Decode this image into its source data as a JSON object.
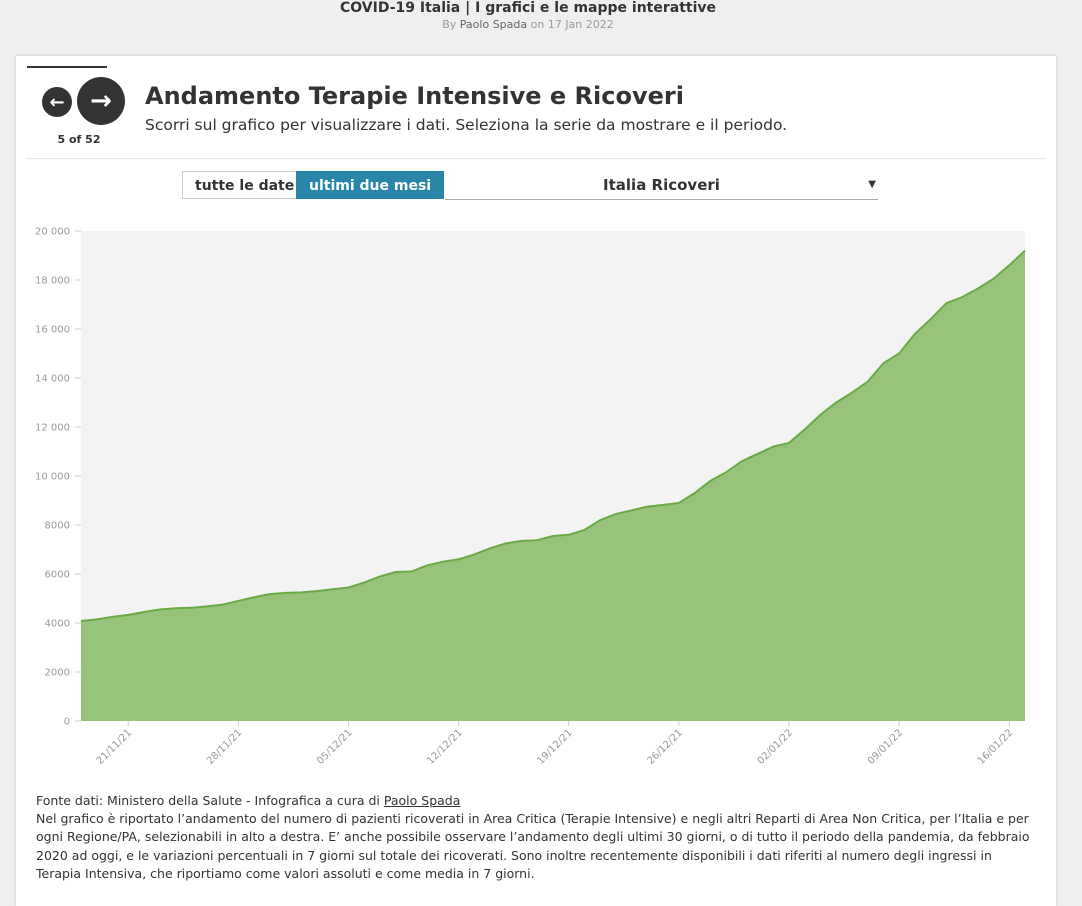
{
  "header": {
    "title": "COVID-19 Italia | I grafici e le mappe interattive",
    "by": "By",
    "author": "Paolo Spada",
    "on": "on 17 Jan 2022"
  },
  "nav": {
    "counter": "5 of 52"
  },
  "card": {
    "title": "Andamento Terapie Intensive e Ricoveri",
    "subtitle": "Scorri sul grafico per visualizzare i dati. Seleziona la serie da mostrare e il periodo."
  },
  "controls": {
    "buttons": [
      "tutte le date",
      "ultimi due mesi"
    ],
    "active": 1,
    "dropdown": "Italia Ricoveri"
  },
  "chart_data": {
    "type": "area",
    "x": [
      "18/11/21",
      "19/11/21",
      "20/11/21",
      "21/11/21",
      "22/11/21",
      "23/11/21",
      "24/11/21",
      "25/11/21",
      "26/11/21",
      "27/11/21",
      "28/11/21",
      "29/11/21",
      "30/11/21",
      "01/12/21",
      "02/12/21",
      "03/12/21",
      "04/12/21",
      "05/12/21",
      "06/12/21",
      "07/12/21",
      "08/12/21",
      "09/12/21",
      "10/12/21",
      "11/12/21",
      "12/12/21",
      "13/12/21",
      "14/12/21",
      "15/12/21",
      "16/12/21",
      "17/12/21",
      "18/12/21",
      "19/12/21",
      "20/12/21",
      "21/12/21",
      "22/12/21",
      "23/12/21",
      "24/12/21",
      "25/12/21",
      "26/12/21",
      "27/12/21",
      "28/12/21",
      "29/12/21",
      "30/12/21",
      "31/12/21",
      "01/01/22",
      "02/01/22",
      "03/01/22",
      "04/01/22",
      "05/01/22",
      "06/01/22",
      "07/01/22",
      "08/01/22",
      "09/01/22",
      "10/01/22",
      "11/01/22",
      "12/01/22",
      "13/01/22",
      "14/01/22",
      "15/01/22",
      "16/01/22",
      "17/01/22"
    ],
    "series": [
      {
        "name": "Italia Ricoveri",
        "color": "#97c47a",
        "line_color": "#6aaa45",
        "values": [
          4080,
          4150,
          4250,
          4330,
          4450,
          4550,
          4600,
          4620,
          4680,
          4750,
          4900,
          5050,
          5180,
          5230,
          5250,
          5300,
          5380,
          5450,
          5650,
          5900,
          6080,
          6100,
          6350,
          6500,
          6600,
          6800,
          7050,
          7250,
          7350,
          7380,
          7550,
          7600,
          7800,
          8200,
          8450,
          8600,
          8750,
          8820,
          8900,
          9300,
          9800,
          10150,
          10600,
          10900,
          11200,
          11350,
          11900,
          12500,
          13000,
          13400,
          13850,
          14600,
          15000,
          15800,
          16400,
          17050,
          17300,
          17650,
          18050,
          18600,
          19200
        ]
      }
    ],
    "xticks": [
      "21/11/21",
      "28/11/21",
      "05/12/21",
      "12/12/21",
      "19/12/21",
      "26/12/21",
      "02/01/22",
      "09/01/22",
      "16/01/22"
    ],
    "ylim": [
      0,
      20000
    ],
    "yticks": [
      0,
      2000,
      4000,
      6000,
      8000,
      {
        "value": 10000,
        "label": "10 000"
      },
      {
        "value": 12000,
        "label": "12 000"
      },
      {
        "value": 14000,
        "label": "14 000"
      },
      {
        "value": 16000,
        "label": "16 000"
      },
      {
        "value": 18000,
        "label": "18 000"
      },
      {
        "value": 20000,
        "label": "20 000"
      }
    ],
    "grid": false
  },
  "footer": {
    "source": "Fonte dati: Ministero della Salute - Infografica a cura di ",
    "source_link": "Paolo Spada",
    "description": "Nel grafico è riportato l’andamento del numero di pazienti ricoverati in Area Critica (Terapie Intensive) e negli altri Reparti di Area Non Critica, per l’Italia e per ogni Regione/PA, selezionabili in alto a destra. E’ anche possibile osservare l’andamento degli ultimi 30 giorni, o di tutto il periodo della pandemia, da febbraio 2020 ad oggi, e le variazioni percentuali in 7 giorni sul totale dei ricoverati. Sono inoltre recentemente disponibili i dati riferiti al numero degli ingressi in Terapia Intensiva, che riportiamo come valori assoluti e come media in 7 giorni."
  }
}
